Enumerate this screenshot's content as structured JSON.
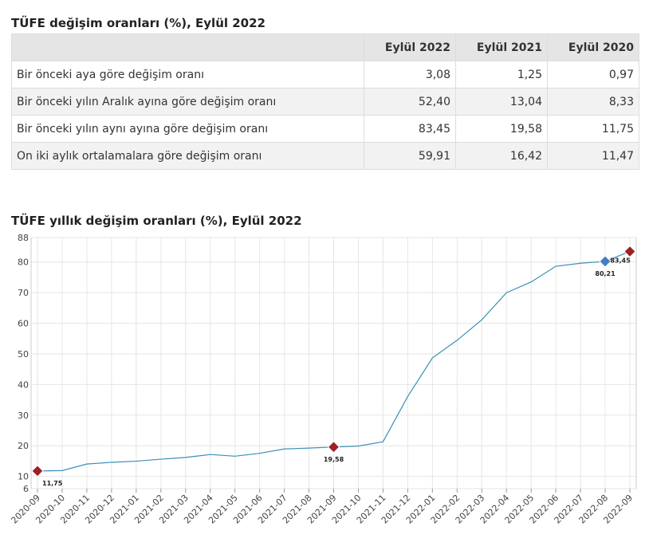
{
  "table": {
    "title": "TÜFE değişim oranları (%), Eylül 2022",
    "columns": [
      "Eylül 2022",
      "Eylül 2021",
      "Eylül 2020"
    ],
    "rows": [
      {
        "label": "Bir önceki aya göre değişim oranı",
        "cells": [
          "3,08",
          "1,25",
          "0,97"
        ]
      },
      {
        "label": "Bir önceki yılın Aralık ayına göre değişim oranı",
        "cells": [
          "52,40",
          "13,04",
          "8,33"
        ]
      },
      {
        "label": "Bir önceki yılın aynı ayına göre değişim oranı",
        "cells": [
          "83,45",
          "19,58",
          "11,75"
        ]
      },
      {
        "label": "On iki aylık ortalamalara göre değişim oranı",
        "cells": [
          "59,91",
          "16,42",
          "11,47"
        ]
      }
    ]
  },
  "chart_data": {
    "type": "line",
    "title": "TÜFE yıllık değişim oranları (%), Eylül 2022",
    "x": [
      "2020-09",
      "2020-10",
      "2020-11",
      "2020-12",
      "2021-01",
      "2021-02",
      "2021-03",
      "2021-04",
      "2021-05",
      "2021-06",
      "2021-07",
      "2021-08",
      "2021-09",
      "2021-10",
      "2021-11",
      "2021-12",
      "2022-01",
      "2022-02",
      "2022-03",
      "2022-04",
      "2022-05",
      "2022-06",
      "2022-07",
      "2022-08",
      "2022-09"
    ],
    "values": [
      11.75,
      11.89,
      14.03,
      14.6,
      14.97,
      15.61,
      16.19,
      17.14,
      16.59,
      17.53,
      18.95,
      19.25,
      19.58,
      19.89,
      21.31,
      36.08,
      48.69,
      54.44,
      61.14,
      69.97,
      73.5,
      78.62,
      79.6,
      80.21,
      83.45
    ],
    "value_labels": [
      "11,75",
      null,
      null,
      null,
      null,
      null,
      null,
      null,
      null,
      null,
      null,
      null,
      "19,58",
      null,
      null,
      null,
      null,
      null,
      null,
      null,
      null,
      null,
      null,
      "80,21",
      "83,45"
    ],
    "marker_colors": [
      "#9b2226",
      null,
      null,
      null,
      null,
      null,
      null,
      null,
      null,
      null,
      null,
      null,
      "#9b2226",
      null,
      null,
      null,
      null,
      null,
      null,
      null,
      null,
      null,
      null,
      "#3f7fbf",
      "#9b2226"
    ],
    "color": "#3a8fb7",
    "ylim": [
      6,
      88
    ],
    "yticks": [
      6,
      10,
      20,
      30,
      40,
      50,
      60,
      70,
      80,
      88
    ],
    "grid": true
  }
}
